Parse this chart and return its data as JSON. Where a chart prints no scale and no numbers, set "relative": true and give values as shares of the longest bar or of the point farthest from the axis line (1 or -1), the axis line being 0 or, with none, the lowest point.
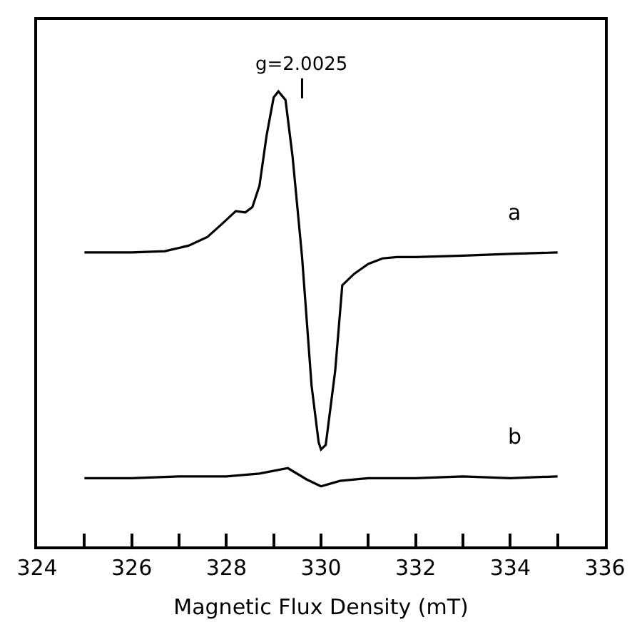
{
  "chart_data": {
    "type": "line",
    "relative": true,
    "xlabel": "Magnetic Flux Density (mT)",
    "xlim": [
      324,
      336
    ],
    "xticks": [
      324,
      {
        "value": 325,
        "label": null
      },
      326,
      {
        "value": 327,
        "label": null
      },
      328,
      {
        "value": 329,
        "label": null
      },
      330,
      {
        "value": 331,
        "label": null
      },
      332,
      {
        "value": 333,
        "label": null
      },
      334,
      {
        "value": 335,
        "label": null
      },
      336
    ],
    "legend": false,
    "marker": "none",
    "line_style": "solid",
    "annotations": [
      {
        "text": "g=2.0025",
        "x": 329.6
      }
    ],
    "series": [
      {
        "name": "a",
        "color": "#000000",
        "x": [
          325,
          326,
          326.7,
          327.2,
          327.6,
          327.9,
          328.2,
          328.4,
          328.55,
          328.7,
          328.85,
          329.0,
          329.1,
          329.25,
          329.4,
          329.6,
          329.8,
          329.95,
          330.0,
          330.1,
          330.3,
          330.45,
          330.7,
          331.0,
          331.3,
          331.6,
          332,
          333,
          334,
          335
        ],
        "values": [
          0.646,
          0.646,
          0.649,
          0.661,
          0.68,
          0.708,
          0.737,
          0.734,
          0.746,
          0.793,
          0.903,
          0.987,
          1,
          0.981,
          0.856,
          0.636,
          0.354,
          0.229,
          0.213,
          0.223,
          0.386,
          0.574,
          0.599,
          0.621,
          0.633,
          0.636,
          0.636,
          0.639,
          0.643,
          0.646
        ]
      },
      {
        "name": "b",
        "color": "#000000",
        "x": [
          325,
          326,
          327,
          328,
          328.7,
          329.3,
          329.7,
          330.0,
          330.4,
          331,
          332,
          333,
          334,
          335
        ],
        "values": [
          0.15,
          0.15,
          0.154,
          0.154,
          0.16,
          0.172,
          0.147,
          0.132,
          0.144,
          0.15,
          0.15,
          0.154,
          0.15,
          0.154
        ]
      }
    ]
  }
}
